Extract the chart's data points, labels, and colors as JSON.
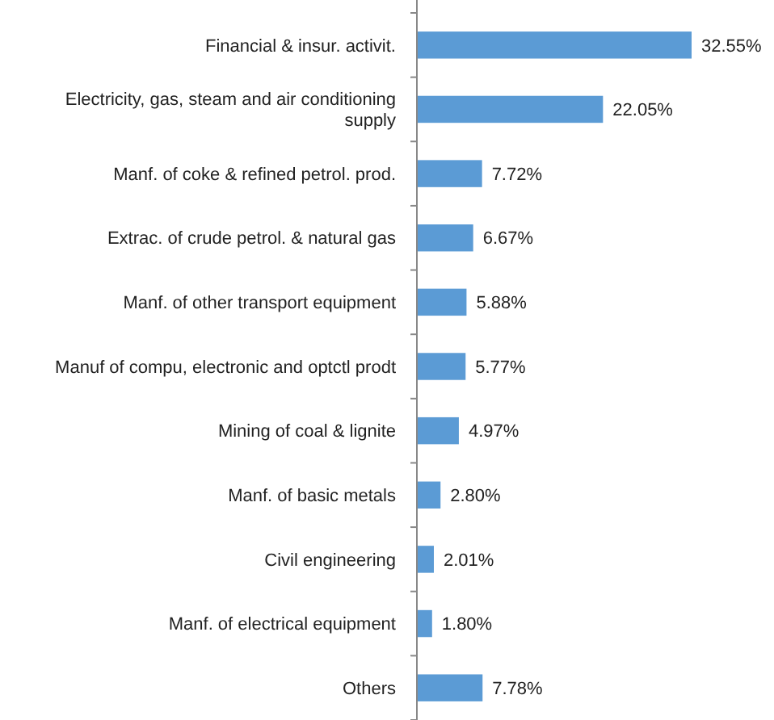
{
  "chart_data": {
    "type": "bar",
    "orientation": "horizontal",
    "data_labels": true,
    "color": "#5b9bd5",
    "categories": [
      "Financial & insur. activit.",
      "Electricity, gas, steam and air conditioning supply",
      "Manf. of coke & refined petrol. prod.",
      "Extrac. of crude petrol. & natural gas",
      "Manf. of other transport equipment",
      "Manuf of compu, electronic and optctl prodt",
      "Mining of coal & lignite",
      "Manf. of basic metals",
      "Civil engineering",
      "Manf. of electrical equipment",
      "Others"
    ],
    "values": [
      32.55,
      22.05,
      7.72,
      6.67,
      5.88,
      5.77,
      4.97,
      2.8,
      2.01,
      1.8,
      7.78
    ],
    "value_labels": [
      "32.55%",
      "22.05%",
      "7.72%",
      "6.67%",
      "5.88%",
      "5.77%",
      "4.97%",
      "2.80%",
      "2.01%",
      "1.80%",
      "7.78%"
    ]
  }
}
